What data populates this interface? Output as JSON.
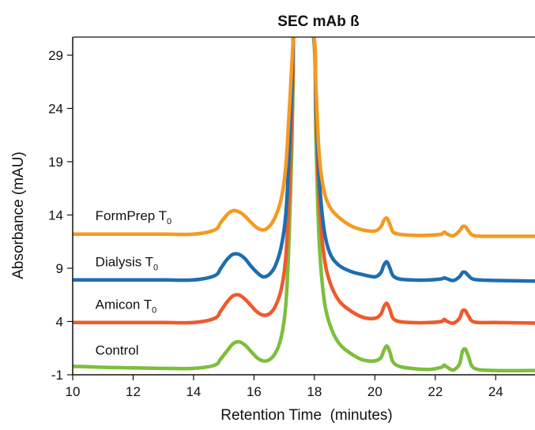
{
  "chart_data": {
    "type": "line",
    "title": "SEC mAb ß",
    "xlabel": "Retention Time  (minutes)",
    "ylabel": "Absorbance (mAU)",
    "xlim": [
      10,
      25.3
    ],
    "ylim": [
      -1,
      30.7
    ],
    "xticks": [
      10,
      12,
      14,
      16,
      18,
      20,
      22,
      24
    ],
    "yticks": [
      -1,
      4,
      9,
      14,
      19,
      24,
      29
    ],
    "grid": false,
    "series": [
      {
        "name": "Control",
        "label_main": "Control",
        "label_sub": "",
        "label_pos": [
          10.75,
          0.9
        ],
        "color": "#7dbe3d",
        "x": [
          10.0,
          11.0,
          12.0,
          13.0,
          14.0,
          14.7,
          14.9,
          15.1,
          15.3,
          15.5,
          15.7,
          15.9,
          16.1,
          16.3,
          16.5,
          16.7,
          16.9,
          17.05,
          17.15,
          17.25,
          17.3,
          17.35,
          17.95,
          18.05,
          18.15,
          18.3,
          18.5,
          18.8,
          19.2,
          19.6,
          20.0,
          20.2,
          20.3,
          20.4,
          20.5,
          20.6,
          20.8,
          21.2,
          21.8,
          22.2,
          22.3,
          22.4,
          22.6,
          22.8,
          22.9,
          23.0,
          23.1,
          23.3,
          24.0,
          25.3
        ],
        "y": [
          -0.2,
          -0.3,
          -0.35,
          -0.4,
          -0.4,
          -0.1,
          0.5,
          1.2,
          1.9,
          2.1,
          1.8,
          1.2,
          0.6,
          0.3,
          0.4,
          1.0,
          2.5,
          5.5,
          11.0,
          20.0,
          27.0,
          31.0,
          31.0,
          21.0,
          12.0,
          6.5,
          3.8,
          2.0,
          1.0,
          0.4,
          0.3,
          0.6,
          1.3,
          1.7,
          1.1,
          0.2,
          -0.2,
          -0.4,
          -0.5,
          -0.3,
          -0.1,
          -0.3,
          -0.55,
          0.0,
          1.2,
          1.4,
          0.7,
          -0.4,
          -0.6,
          -0.6
        ]
      },
      {
        "name": "Amicon T0",
        "label_main": "Amicon T",
        "label_sub": "0",
        "label_pos": [
          10.75,
          5.2
        ],
        "color": "#ef5a2b",
        "x": [
          10.0,
          11.0,
          12.0,
          13.0,
          14.0,
          14.7,
          14.9,
          15.1,
          15.3,
          15.5,
          15.7,
          15.9,
          16.1,
          16.3,
          16.5,
          16.7,
          16.9,
          17.05,
          17.15,
          17.25,
          17.3,
          17.35,
          17.95,
          18.05,
          18.15,
          18.3,
          18.5,
          18.8,
          19.2,
          19.6,
          20.0,
          20.2,
          20.3,
          20.4,
          20.5,
          20.6,
          20.8,
          21.2,
          21.8,
          22.2,
          22.3,
          22.4,
          22.6,
          22.8,
          22.9,
          23.0,
          23.1,
          23.3,
          24.0,
          25.3
        ],
        "y": [
          3.9,
          3.9,
          3.9,
          3.9,
          3.9,
          4.3,
          5.0,
          5.8,
          6.4,
          6.5,
          6.1,
          5.5,
          4.9,
          4.6,
          4.7,
          5.4,
          7.0,
          10.0,
          15.0,
          23.0,
          29.0,
          31.0,
          31.0,
          24.0,
          16.0,
          10.5,
          7.8,
          6.0,
          5.0,
          4.4,
          4.3,
          4.7,
          5.4,
          5.7,
          5.1,
          4.3,
          4.0,
          3.9,
          3.9,
          4.0,
          4.2,
          4.0,
          3.85,
          4.3,
          5.0,
          5.0,
          4.5,
          3.95,
          3.9,
          3.85
        ]
      },
      {
        "name": "Dialysis T0",
        "label_main": "Dialysis T",
        "label_sub": "0",
        "label_pos": [
          10.75,
          9.2
        ],
        "color": "#1f6db0",
        "x": [
          10.0,
          11.0,
          12.0,
          13.0,
          14.0,
          14.7,
          14.9,
          15.1,
          15.3,
          15.5,
          15.7,
          15.9,
          16.1,
          16.3,
          16.5,
          16.7,
          16.9,
          17.05,
          17.15,
          17.25,
          17.3,
          17.35,
          17.95,
          18.05,
          18.15,
          18.3,
          18.5,
          18.8,
          19.2,
          19.6,
          20.0,
          20.2,
          20.3,
          20.4,
          20.5,
          20.6,
          20.8,
          21.2,
          21.8,
          22.2,
          22.3,
          22.4,
          22.6,
          22.8,
          22.9,
          23.0,
          23.1,
          23.3,
          24.0,
          25.3
        ],
        "y": [
          7.9,
          7.9,
          7.9,
          7.9,
          7.9,
          8.3,
          9.0,
          9.8,
          10.3,
          10.3,
          9.9,
          9.2,
          8.6,
          8.2,
          8.4,
          9.2,
          11.0,
          14.0,
          19.0,
          26.0,
          30.0,
          31.0,
          31.0,
          25.0,
          18.0,
          13.0,
          10.5,
          9.3,
          8.7,
          8.4,
          8.2,
          8.6,
          9.3,
          9.6,
          9.0,
          8.3,
          8.0,
          7.9,
          7.9,
          8.0,
          8.1,
          8.0,
          7.85,
          8.2,
          8.6,
          8.6,
          8.3,
          7.95,
          7.85,
          7.8
        ]
      },
      {
        "name": "FormPrep T0",
        "label_main": "FormPrep T",
        "label_sub": "0",
        "label_pos": [
          10.75,
          13.5
        ],
        "color": "#f59a21",
        "x": [
          10.0,
          11.0,
          12.0,
          13.0,
          14.0,
          14.7,
          14.9,
          15.1,
          15.3,
          15.5,
          15.7,
          15.9,
          16.1,
          16.3,
          16.5,
          16.7,
          16.9,
          17.05,
          17.15,
          17.25,
          17.3,
          17.35,
          17.95,
          18.05,
          18.15,
          18.3,
          18.5,
          18.8,
          19.2,
          19.6,
          20.0,
          20.2,
          20.3,
          20.4,
          20.5,
          20.6,
          20.8,
          21.2,
          21.8,
          22.2,
          22.3,
          22.4,
          22.6,
          22.8,
          22.9,
          23.0,
          23.1,
          23.3,
          24.0,
          25.3
        ],
        "y": [
          12.2,
          12.2,
          12.2,
          12.2,
          12.2,
          12.6,
          13.3,
          14.0,
          14.4,
          14.3,
          13.9,
          13.3,
          12.8,
          12.6,
          12.9,
          13.8,
          15.5,
          18.5,
          23.0,
          28.0,
          30.5,
          31.0,
          31.0,
          26.0,
          20.0,
          16.5,
          14.8,
          13.8,
          13.0,
          12.6,
          12.5,
          12.9,
          13.5,
          13.7,
          13.1,
          12.4,
          12.2,
          12.1,
          12.1,
          12.2,
          12.4,
          12.2,
          12.05,
          12.5,
          12.9,
          12.9,
          12.5,
          12.05,
          12.0,
          12.0
        ]
      }
    ]
  }
}
